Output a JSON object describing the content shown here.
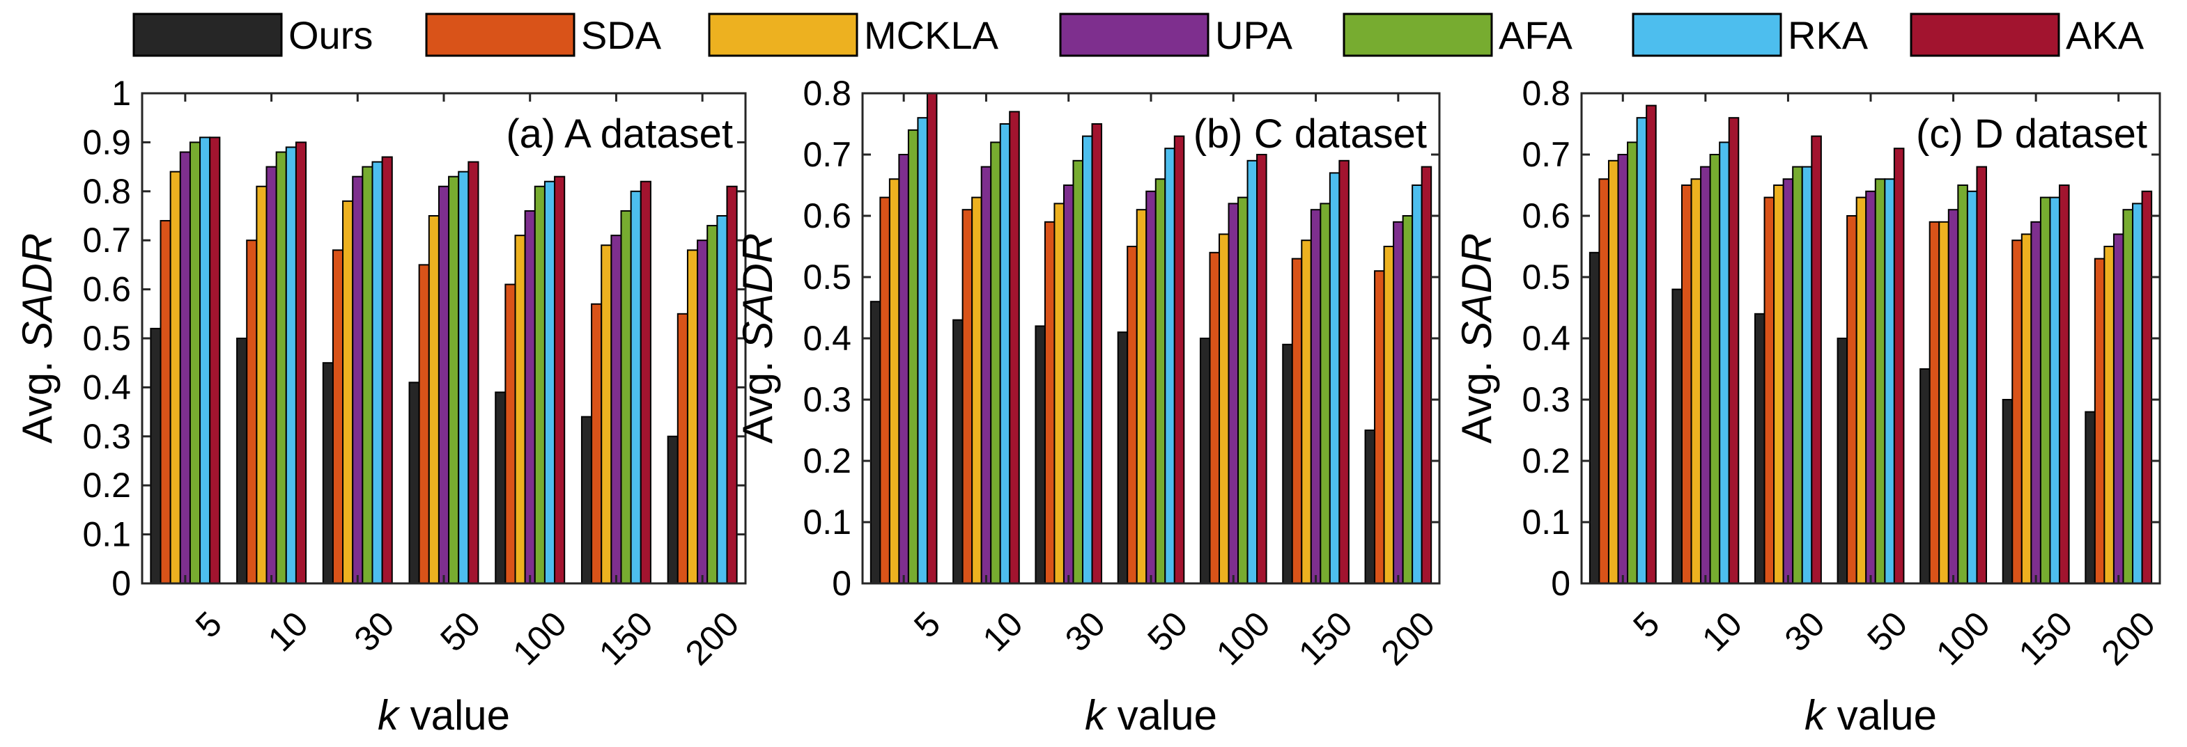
{
  "chart_data": {
    "type": "bar",
    "legend": [
      "Ours",
      "SDA",
      "MCKLA",
      "UPA",
      "AFA",
      "RKA",
      "AKA"
    ],
    "colors": {
      "Ours": "#262626",
      "SDA": "#d95319",
      "MCKLA": "#edb120",
      "UPA": "#7e2f8e",
      "AFA": "#77ac30",
      "RKA": "#4dbeee",
      "AKA": "#a2142f"
    },
    "categories": [
      "5",
      "10",
      "30",
      "50",
      "100",
      "150",
      "200"
    ],
    "xlabel_italic": "k",
    "xlabel_rest": " value",
    "ylabel_prefix": "Avg. ",
    "ylabel_italic": "SADR",
    "panels": [
      {
        "title": "(a) A dataset",
        "ylim": [
          0,
          1
        ],
        "yticks": [
          "0",
          "0.1",
          "0.2",
          "0.3",
          "0.4",
          "0.5",
          "0.6",
          "0.7",
          "0.8",
          "0.9",
          "1"
        ],
        "series": [
          {
            "name": "Ours",
            "values": [
              0.52,
              0.5,
              0.45,
              0.41,
              0.39,
              0.34,
              0.3
            ]
          },
          {
            "name": "SDA",
            "values": [
              0.74,
              0.7,
              0.68,
              0.65,
              0.61,
              0.57,
              0.55
            ]
          },
          {
            "name": "MCKLA",
            "values": [
              0.84,
              0.81,
              0.78,
              0.75,
              0.71,
              0.69,
              0.68
            ]
          },
          {
            "name": "UPA",
            "values": [
              0.88,
              0.85,
              0.83,
              0.81,
              0.76,
              0.71,
              0.7
            ]
          },
          {
            "name": "AFA",
            "values": [
              0.9,
              0.88,
              0.85,
              0.83,
              0.81,
              0.76,
              0.73
            ]
          },
          {
            "name": "RKA",
            "values": [
              0.91,
              0.89,
              0.86,
              0.84,
              0.82,
              0.8,
              0.75
            ]
          },
          {
            "name": "AKA",
            "values": [
              0.91,
              0.9,
              0.87,
              0.86,
              0.83,
              0.82,
              0.81
            ]
          }
        ]
      },
      {
        "title": "(b) C dataset",
        "ylim": [
          0,
          0.8
        ],
        "yticks": [
          "0",
          "0.1",
          "0.2",
          "0.3",
          "0.4",
          "0.5",
          "0.6",
          "0.7",
          "0.8"
        ],
        "series": [
          {
            "name": "Ours",
            "values": [
              0.46,
              0.43,
              0.42,
              0.41,
              0.4,
              0.39,
              0.25
            ]
          },
          {
            "name": "SDA",
            "values": [
              0.63,
              0.61,
              0.59,
              0.55,
              0.54,
              0.53,
              0.51
            ]
          },
          {
            "name": "MCKLA",
            "values": [
              0.66,
              0.63,
              0.62,
              0.61,
              0.57,
              0.56,
              0.55
            ]
          },
          {
            "name": "UPA",
            "values": [
              0.7,
              0.68,
              0.65,
              0.64,
              0.62,
              0.61,
              0.59
            ]
          },
          {
            "name": "AFA",
            "values": [
              0.74,
              0.72,
              0.69,
              0.66,
              0.63,
              0.62,
              0.6
            ]
          },
          {
            "name": "RKA",
            "values": [
              0.76,
              0.75,
              0.73,
              0.71,
              0.69,
              0.67,
              0.65
            ]
          },
          {
            "name": "AKA",
            "values": [
              0.8,
              0.77,
              0.75,
              0.73,
              0.7,
              0.69,
              0.68
            ]
          }
        ]
      },
      {
        "title": "(c) D dataset",
        "ylim": [
          0,
          0.8
        ],
        "yticks": [
          "0",
          "0.1",
          "0.2",
          "0.3",
          "0.4",
          "0.5",
          "0.6",
          "0.7",
          "0.8"
        ],
        "series": [
          {
            "name": "Ours",
            "values": [
              0.54,
              0.48,
              0.44,
              0.4,
              0.35,
              0.3,
              0.28
            ]
          },
          {
            "name": "SDA",
            "values": [
              0.66,
              0.65,
              0.63,
              0.6,
              0.59,
              0.56,
              0.53
            ]
          },
          {
            "name": "MCKLA",
            "values": [
              0.69,
              0.66,
              0.65,
              0.63,
              0.59,
              0.57,
              0.55
            ]
          },
          {
            "name": "UPA",
            "values": [
              0.7,
              0.68,
              0.66,
              0.64,
              0.61,
              0.59,
              0.57
            ]
          },
          {
            "name": "AFA",
            "values": [
              0.72,
              0.7,
              0.68,
              0.66,
              0.65,
              0.63,
              0.61
            ]
          },
          {
            "name": "RKA",
            "values": [
              0.76,
              0.72,
              0.68,
              0.66,
              0.64,
              0.63,
              0.62
            ]
          },
          {
            "name": "AKA",
            "values": [
              0.78,
              0.76,
              0.73,
              0.71,
              0.68,
              0.65,
              0.64
            ]
          }
        ]
      }
    ]
  }
}
